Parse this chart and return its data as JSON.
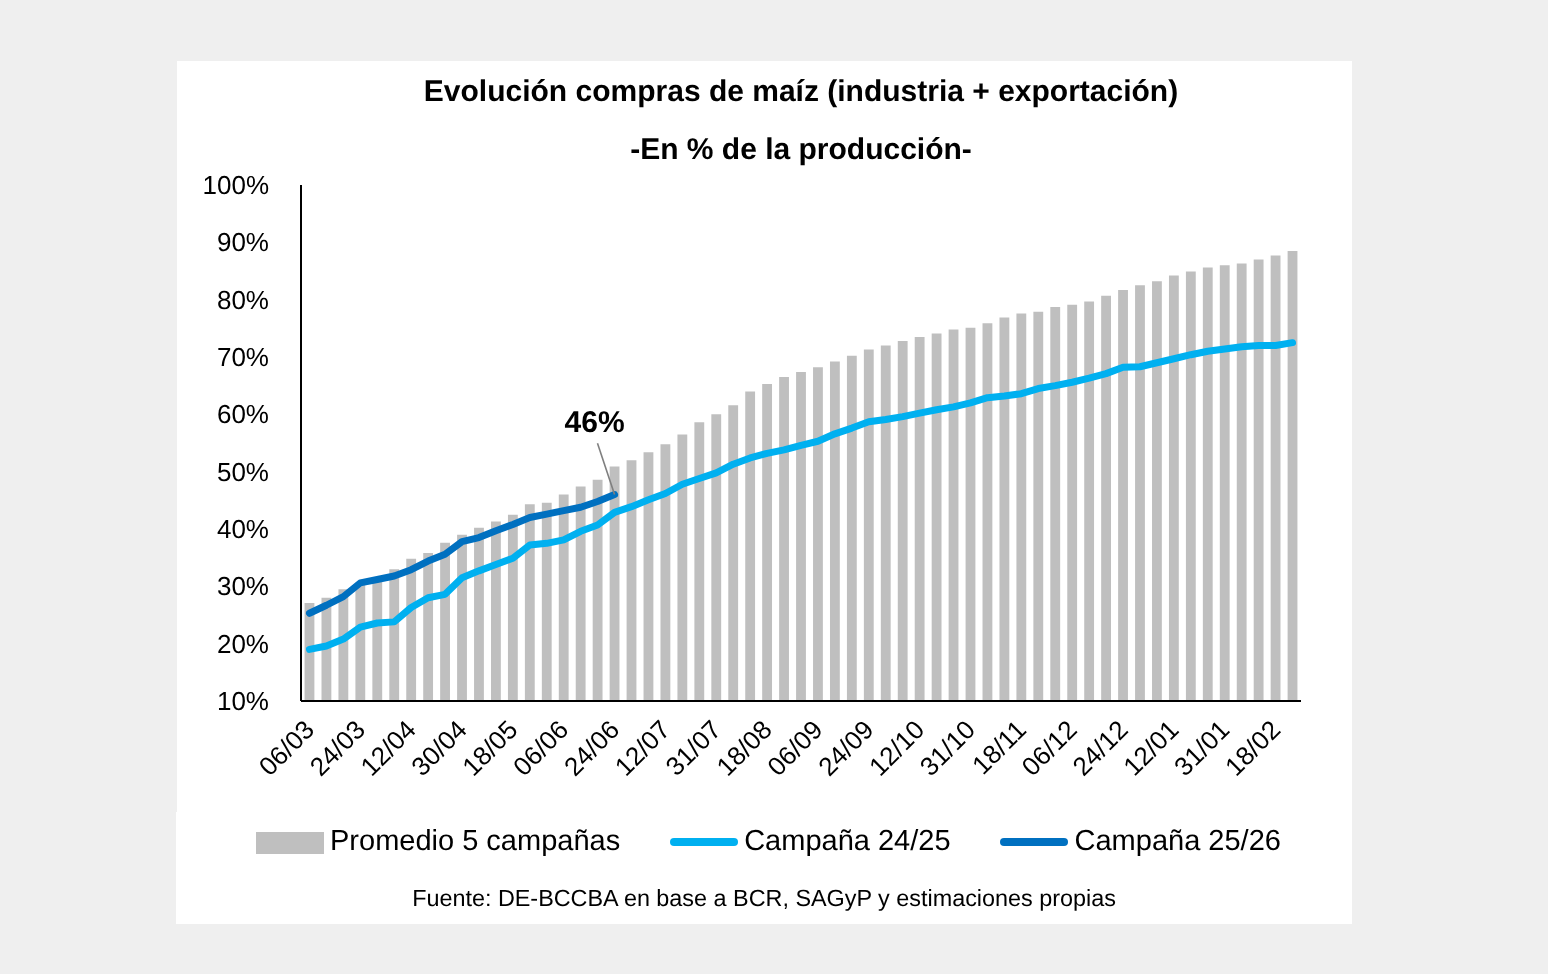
{
  "chart_data": {
    "type": "bar",
    "title": "Evolución compras de maíz (industria + exportación)",
    "subtitle": "-En % de la producción-",
    "categories": [
      "06/03",
      null,
      null,
      "24/03",
      null,
      null,
      "12/04",
      null,
      null,
      "30/04",
      null,
      null,
      "18/05",
      null,
      null,
      "06/06",
      null,
      null,
      "24/06",
      null,
      null,
      "12/07",
      null,
      null,
      "31/07",
      null,
      null,
      "18/08",
      null,
      null,
      "06/09",
      null,
      null,
      "24/09",
      null,
      null,
      "12/10",
      null,
      null,
      "31/10",
      null,
      null,
      "18/11",
      null,
      null,
      "06/12",
      null,
      null,
      "24/12",
      null,
      null,
      "12/01",
      null,
      null,
      "31/01",
      null,
      null,
      "18/02",
      null
    ],
    "series": [
      {
        "name": "Promedio 5 campañas",
        "color": "#bfbfbf",
        "values": [
          27.1,
          28.0,
          29.5,
          30.6,
          31.4,
          33.0,
          34.8,
          35.8,
          37.6,
          39.0,
          40.2,
          41.3,
          42.5,
          44.3,
          44.6,
          46.0,
          47.4,
          48.6,
          50.9,
          52.0,
          53.4,
          54.8,
          56.5,
          58.6,
          60.0,
          61.6,
          64.0,
          65.3,
          66.5,
          67.4,
          68.2,
          69.2,
          70.2,
          71.3,
          72.0,
          72.8,
          73.5,
          74.1,
          74.8,
          75.1,
          75.9,
          76.9,
          77.6,
          77.9,
          78.7,
          79.1,
          79.7,
          80.7,
          81.7,
          82.5,
          83.2,
          84.2,
          84.9,
          85.6,
          86.0,
          86.3,
          87.0,
          87.7,
          88.5
        ]
      },
      {
        "name": "Campaña 24/25",
        "type": "line",
        "color": "#00b0f0",
        "values": [
          19.0,
          19.6,
          20.8,
          22.9,
          23.6,
          23.8,
          26.3,
          28.0,
          28.6,
          31.5,
          32.7,
          33.8,
          34.9,
          37.2,
          37.5,
          38.1,
          39.6,
          40.7,
          42.9,
          43.9,
          45.1,
          46.2,
          47.8,
          48.8,
          49.8,
          51.3,
          52.4,
          53.2,
          53.8,
          54.6,
          55.3,
          56.6,
          57.6,
          58.7,
          59.1,
          59.6,
          60.2,
          60.8,
          61.3,
          62.0,
          62.9,
          63.2,
          63.6,
          64.5,
          65.0,
          65.6,
          66.3,
          67.1,
          68.2,
          68.3,
          69.0,
          69.7,
          70.4,
          71.0,
          71.4,
          71.8,
          72.0,
          72.0,
          72.5
        ]
      },
      {
        "name": "Campaña 25/26",
        "type": "line",
        "color": "#0070c0",
        "values": [
          25.3,
          26.7,
          28.2,
          30.6,
          31.2,
          31.8,
          32.9,
          34.4,
          35.6,
          37.8,
          38.5,
          39.7,
          40.8,
          42.0,
          42.6,
          43.2,
          43.8,
          44.8,
          46,
          null,
          null,
          null,
          null,
          null,
          null,
          null,
          null,
          null,
          null,
          null,
          null,
          null,
          null,
          null,
          null,
          null,
          null,
          null,
          null,
          null,
          null,
          null,
          null,
          null,
          null,
          null,
          null,
          null,
          null,
          null,
          null,
          null,
          null,
          null,
          null,
          null,
          null,
          null,
          null
        ],
        "value_labels": [
          null,
          null,
          null,
          null,
          null,
          null,
          null,
          null,
          null,
          null,
          null,
          null,
          null,
          null,
          null,
          null,
          null,
          null,
          "46%",
          null,
          null,
          null,
          null,
          null,
          null,
          null,
          null,
          null,
          null,
          null,
          null,
          null,
          null,
          null,
          null,
          null,
          null,
          null,
          null,
          null,
          null,
          null,
          null,
          null,
          null,
          null,
          null,
          null,
          null,
          null,
          null,
          null,
          null,
          null,
          null,
          null,
          null,
          null,
          null
        ]
      }
    ],
    "ylim": [
      10,
      100
    ],
    "yticks": [
      {
        "value": 10,
        "label": "10%"
      },
      {
        "value": 20,
        "label": "20%"
      },
      {
        "value": 30,
        "label": "30%"
      },
      {
        "value": 40,
        "label": "40%"
      },
      {
        "value": 50,
        "label": "50%"
      },
      {
        "value": 60,
        "label": "60%"
      },
      {
        "value": 70,
        "label": "70%"
      },
      {
        "value": 80,
        "label": "80%"
      },
      {
        "value": 90,
        "label": "90%"
      },
      {
        "value": 100,
        "label": "100%"
      }
    ],
    "grid": false,
    "legend": "bottom",
    "annotations": [
      "Fuente: DE-BCCBA en base a BCR, SAGyP y estimaciones propias"
    ]
  }
}
